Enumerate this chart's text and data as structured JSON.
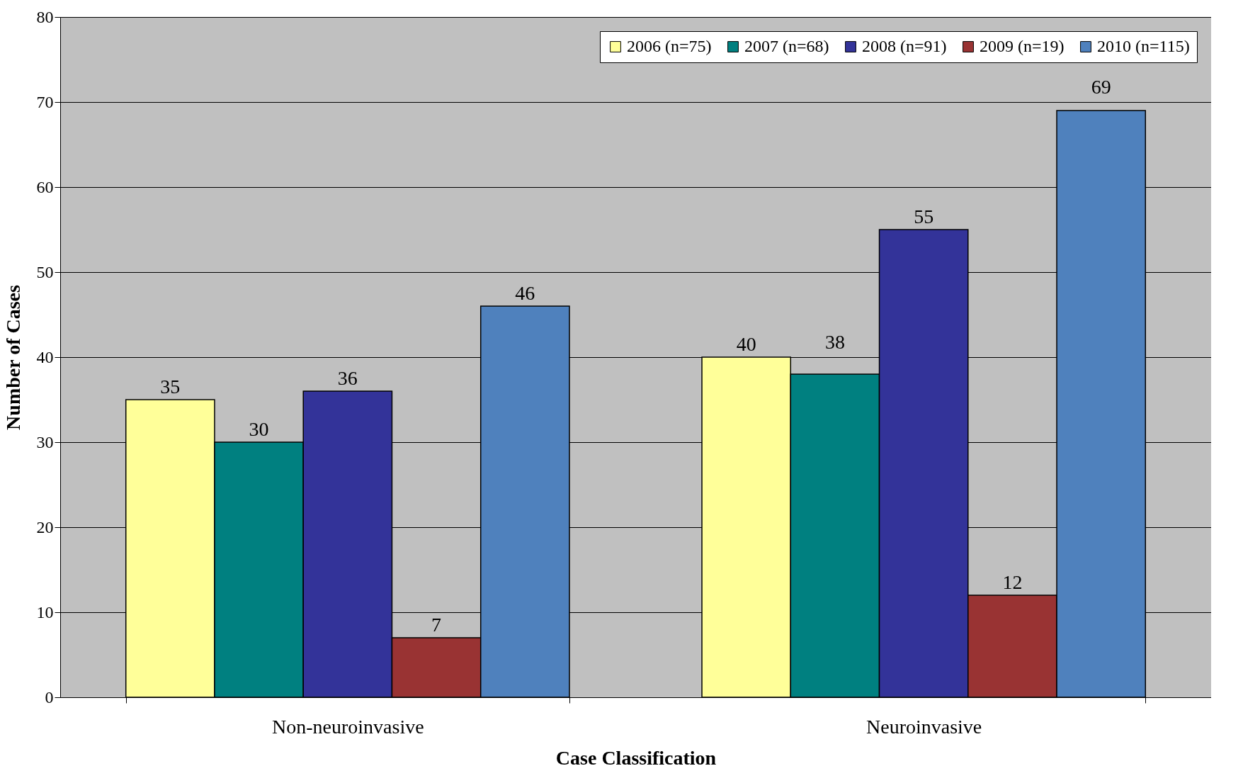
{
  "chart_data": {
    "type": "bar",
    "xlabel": "Case Classification",
    "ylabel": "Number of Cases",
    "categories": [
      "Non-neuroinvasive",
      "Neuroinvasive"
    ],
    "series": [
      {
        "name": "2006 (n=75)",
        "color": "#ffff99",
        "values": [
          35,
          40
        ]
      },
      {
        "name": "2007 (n=68)",
        "color": "#008080",
        "values": [
          30,
          38
        ]
      },
      {
        "name": "2008 (n=91)",
        "color": "#333399",
        "values": [
          36,
          55
        ]
      },
      {
        "name": "2009 (n=19)",
        "color": "#993333",
        "values": [
          7,
          12
        ]
      },
      {
        "name": "2010 (n=115)",
        "color": "#4f81bd",
        "values": [
          46,
          69
        ]
      }
    ],
    "ylim": [
      0,
      80
    ],
    "yticks": [
      0,
      10,
      20,
      30,
      40,
      50,
      60,
      70,
      80
    ],
    "grid": "y",
    "legend": "top right",
    "data_labels": true
  }
}
